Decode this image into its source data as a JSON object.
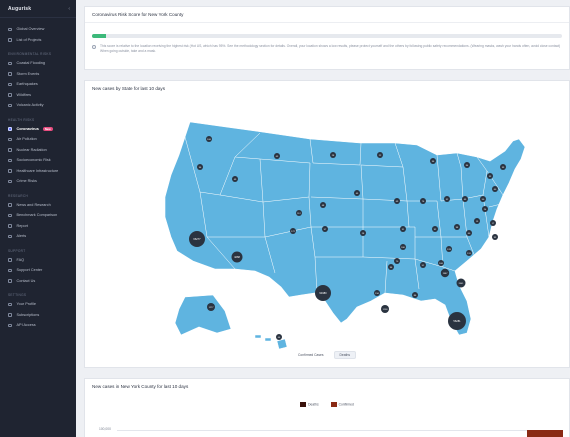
{
  "app": {
    "name": "Augurisk"
  },
  "sidebar": {
    "top_items": [
      {
        "label": "Global Overview",
        "icon": "globe-icon"
      },
      {
        "label": "List of Projects",
        "icon": "list-icon"
      }
    ],
    "sections": [
      {
        "title": "Environmental Risks",
        "items": [
          {
            "label": "Coastal Flooding"
          },
          {
            "label": "Storm Events"
          },
          {
            "label": "Earthquakes"
          },
          {
            "label": "Wildfires"
          },
          {
            "label": "Volcanic Activity"
          }
        ]
      },
      {
        "title": "Health Risks",
        "items": [
          {
            "label": "Coronavirus",
            "badge": "New",
            "active": true
          },
          {
            "label": "Air Pollution"
          },
          {
            "label": "Nuclear Radiation"
          },
          {
            "label": "Socioeconomic Risk"
          },
          {
            "label": "Healthcare Infrastructure"
          },
          {
            "label": "Crime Risks"
          }
        ]
      },
      {
        "title": "Research",
        "items": [
          {
            "label": "News and Research"
          },
          {
            "label": "Benchmark Comparison"
          },
          {
            "label": "Report"
          },
          {
            "label": "Alerts"
          }
        ]
      },
      {
        "title": "Support",
        "items": [
          {
            "label": "FAQ"
          },
          {
            "label": "Support Center"
          },
          {
            "label": "Contact Us"
          }
        ]
      },
      {
        "title": "Settings",
        "items": [
          {
            "label": "Your Profile"
          },
          {
            "label": "Subscriptions"
          },
          {
            "label": "API Access"
          }
        ]
      }
    ]
  },
  "risk_card": {
    "title": "Coronavirus Risk Score for New York County",
    "score_fraction": 0.03,
    "description": "This score is relative to the location receiving the highest risk (Hot US, which has 95%. See the methodology section for details. Overall, your location shows a low results, please protect yourself and the others by following public safety recommendations. (Wearing masks, wash your hands often, avoid close contact) When going outside, take and a mask."
  },
  "map_card": {
    "title": "New cases by State for last 10 days",
    "legend_label": "Confirmed Cases",
    "legend_button": "Deaths",
    "markers": [
      {
        "label": "106"
      },
      {
        "label": "96"
      },
      {
        "label": "49"
      },
      {
        "label": "63"
      },
      {
        "label": "28"
      },
      {
        "label": "22"
      },
      {
        "label": "36"
      },
      {
        "label": "84"
      },
      {
        "label": "33"
      },
      {
        "label": "39"
      },
      {
        "label": "60"
      },
      {
        "label": "50"
      },
      {
        "label": "24"
      },
      {
        "label": "45"
      },
      {
        "label": "32"
      },
      {
        "label": "76"
      },
      {
        "label": "69"
      },
      {
        "label": "45"
      },
      {
        "label": "48"
      },
      {
        "label": "112"
      },
      {
        "label": "172"
      },
      {
        "label": "57"
      },
      {
        "label": "28"
      },
      {
        "label": "31"
      },
      {
        "label": "92"
      },
      {
        "label": "98"
      },
      {
        "label": "15"
      },
      {
        "label": "17"
      },
      {
        "label": "93"
      },
      {
        "label": "60"
      },
      {
        "label": "66277"
      },
      {
        "label": "4268"
      },
      {
        "label": "93480"
      },
      {
        "label": "96"
      },
      {
        "label": "51"
      },
      {
        "label": "128"
      },
      {
        "label": "166"
      },
      {
        "label": "86"
      },
      {
        "label": "156"
      },
      {
        "label": "131"
      },
      {
        "label": "2441"
      },
      {
        "label": "1987"
      },
      {
        "label": "70"
      },
      {
        "label": "56281"
      },
      {
        "label": "1277"
      },
      {
        "label": "66"
      },
      {
        "label": "1258"
      },
      {
        "label": "180"
      }
    ]
  },
  "bar_card": {
    "title": "New cases in New York County for last 10 days",
    "legend": [
      {
        "label": "Deaths",
        "color": "#3a120b"
      },
      {
        "label": "Confirmed",
        "color": "#8a2a14"
      }
    ],
    "y_tick": "100,000"
  },
  "colors": {
    "sidebar_bg": "#1f2431",
    "map_fill": "#5fb4e0",
    "marker": "#2a3340",
    "progress": "#3cb97a",
    "accent": "#6c7bff"
  }
}
